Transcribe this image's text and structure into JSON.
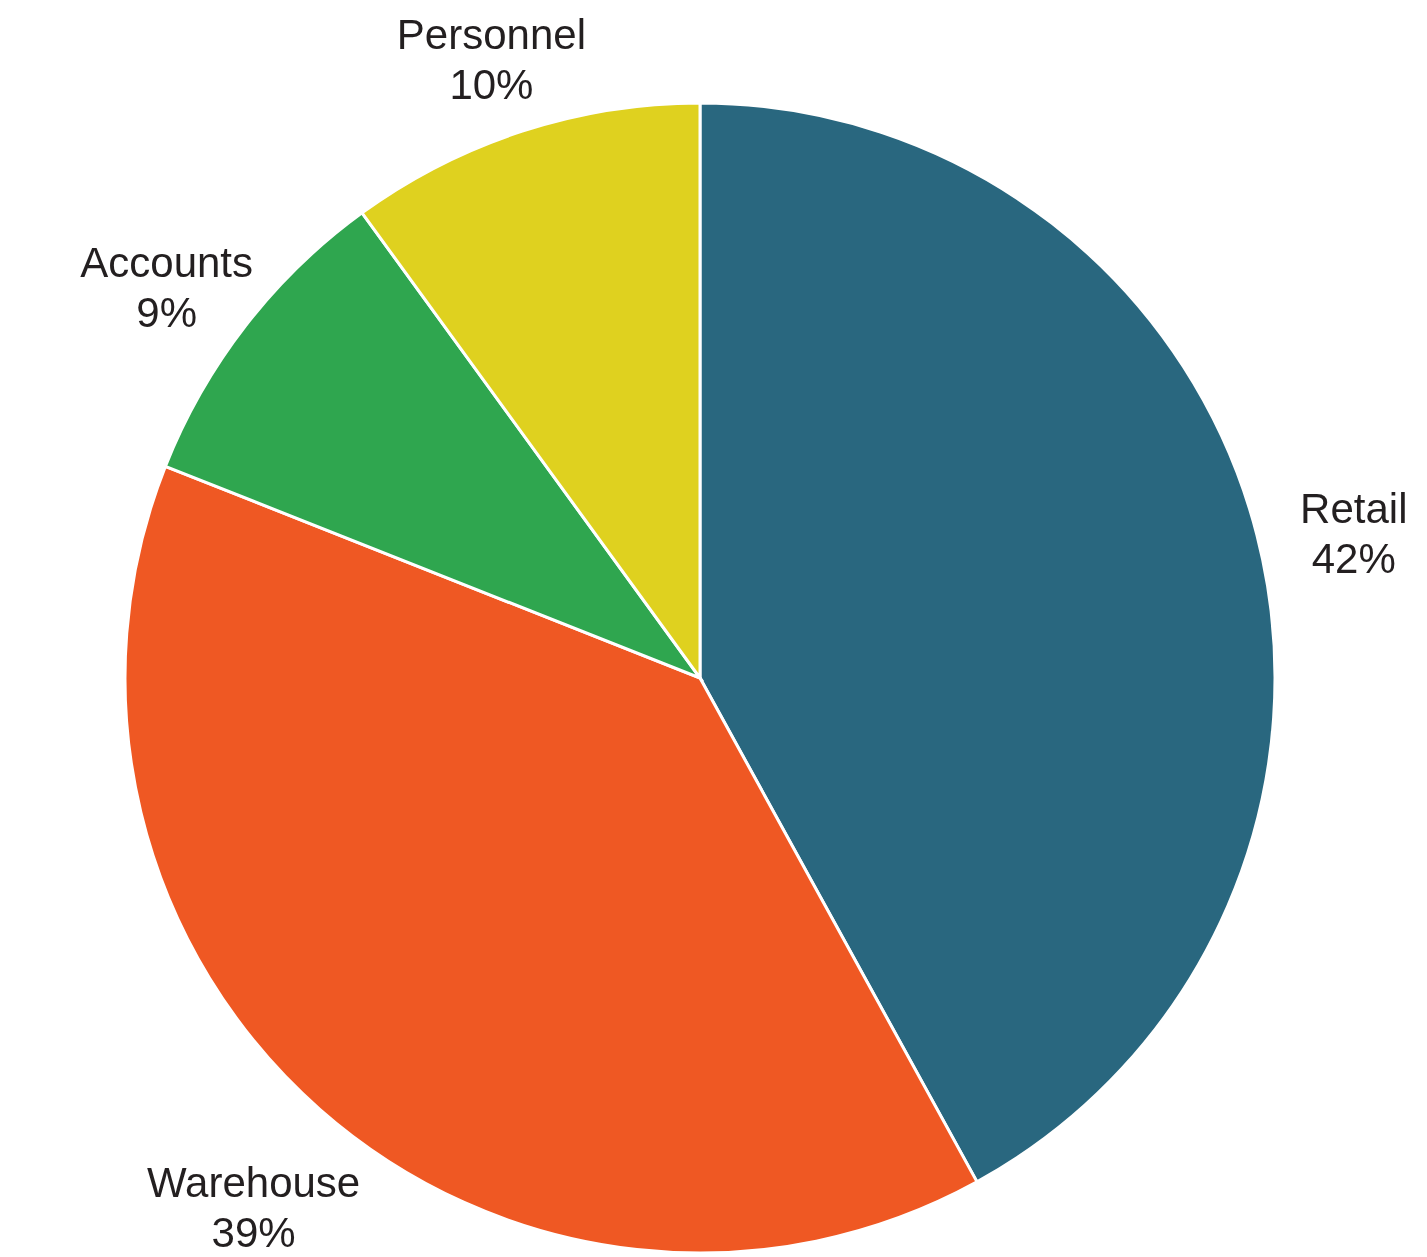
{
  "chart_data": {
    "type": "pie",
    "categories": [
      "Retail",
      "Warehouse",
      "Accounts",
      "Personnel"
    ],
    "values": [
      42,
      39,
      9,
      10
    ],
    "value_labels": [
      "42%",
      "39%",
      "9%",
      "10%"
    ],
    "colors": [
      "#29677f",
      "#ef5823",
      "#2fa64f",
      "#dfd11f"
    ]
  }
}
